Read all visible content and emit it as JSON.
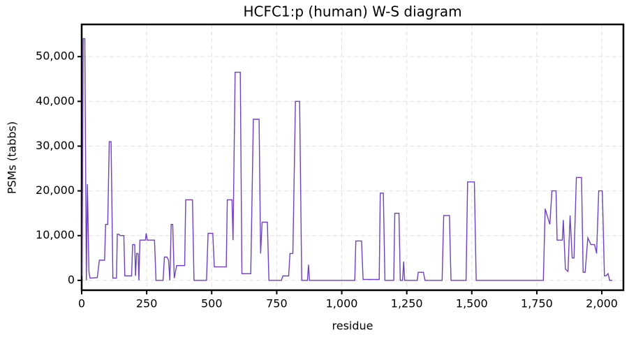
{
  "chart_data": {
    "type": "line",
    "title": "HCFC1:p (human) W-S diagram",
    "x_label": "residue",
    "y_label": "PSMs (tabbs)",
    "grid": true,
    "xlim": [
      0,
      2083
    ],
    "ylim": [
      -2200,
      57200
    ],
    "xticks": [
      0,
      250,
      500,
      750,
      {
        "value": 1000,
        "label": "1,000"
      },
      {
        "value": 1250,
        "label": "1,250"
      },
      {
        "value": 1500,
        "label": "1,500"
      },
      {
        "value": 1750,
        "label": "1,750"
      },
      {
        "value": 2000,
        "label": "2,000"
      }
    ],
    "yticks": [
      0,
      {
        "value": 10000,
        "label": "10,000"
      },
      {
        "value": 20000,
        "label": "20,000"
      },
      {
        "value": 30000,
        "label": "30,000"
      },
      {
        "value": 40000,
        "label": "40,000"
      },
      {
        "value": 50000,
        "label": "50,000"
      }
    ],
    "series": [
      {
        "color": "#6f3fc4",
        "x": [
          2,
          6,
          12,
          18,
          22,
          28,
          32,
          60,
          68,
          88,
          92,
          100,
          106,
          113,
          120,
          134,
          137,
          143,
          148,
          162,
          166,
          192,
          196,
          204,
          207,
          211,
          217,
          220,
          224,
          245,
          248,
          252,
          280,
          286,
          313,
          318,
          328,
          334,
          339,
          344,
          350,
          356,
          365,
          396,
          400,
          426,
          432,
          480,
          486,
          504,
          510,
          556,
          560,
          578,
          582,
          590,
          610,
          616,
          650,
          660,
          682,
          688,
          694,
          714,
          720,
          768,
          774,
          796,
          801,
          812,
          822,
          838,
          846,
          868,
          872,
          876,
          1050,
          1054,
          1076,
          1082,
          1144,
          1148,
          1160,
          1166,
          1200,
          1204,
          1220,
          1225,
          1234,
          1238,
          1242,
          1290,
          1294,
          1314,
          1320,
          1386,
          1392,
          1414,
          1420,
          1478,
          1484,
          1510,
          1517,
          1775,
          1782,
          1800,
          1808,
          1824,
          1828,
          1848,
          1852,
          1860,
          1870,
          1878,
          1886,
          1893,
          1902,
          1922,
          1928,
          1936,
          1946,
          1958,
          1972,
          1980,
          1988,
          2002,
          2010,
          2016,
          2024,
          2030,
          2040
        ],
        "values": [
          1000,
          54000,
          54000,
          0,
          21500,
          2000,
          500,
          600,
          4500,
          4500,
          12500,
          12500,
          31000,
          31000,
          500,
          500,
          10300,
          10300,
          10000,
          10000,
          1000,
          1000,
          8000,
          8000,
          1000,
          6000,
          6000,
          0,
          9000,
          9000,
          10500,
          9000,
          9000,
          0,
          0,
          5200,
          5200,
          4500,
          0,
          12500,
          12500,
          500,
          3300,
          3300,
          18000,
          18000,
          0,
          0,
          10500,
          10500,
          3000,
          3000,
          18000,
          18000,
          9000,
          46500,
          46500,
          1500,
          1500,
          36000,
          36000,
          6000,
          13000,
          13000,
          0,
          0,
          1000,
          1000,
          6000,
          6000,
          40000,
          40000,
          0,
          0,
          3500,
          0,
          0,
          8800,
          8800,
          200,
          200,
          19500,
          19500,
          0,
          0,
          15000,
          15000,
          0,
          0,
          4200,
          0,
          0,
          1800,
          1800,
          0,
          0,
          14500,
          14500,
          0,
          0,
          22000,
          22000,
          0,
          0,
          16000,
          12500,
          20000,
          20000,
          9000,
          9000,
          13500,
          2500,
          2000,
          14500,
          5000,
          5000,
          23000,
          23000,
          1800,
          1800,
          9500,
          8000,
          8000,
          6000,
          20000,
          20000,
          1000,
          1000,
          1500,
          0,
          0
        ]
      }
    ]
  }
}
